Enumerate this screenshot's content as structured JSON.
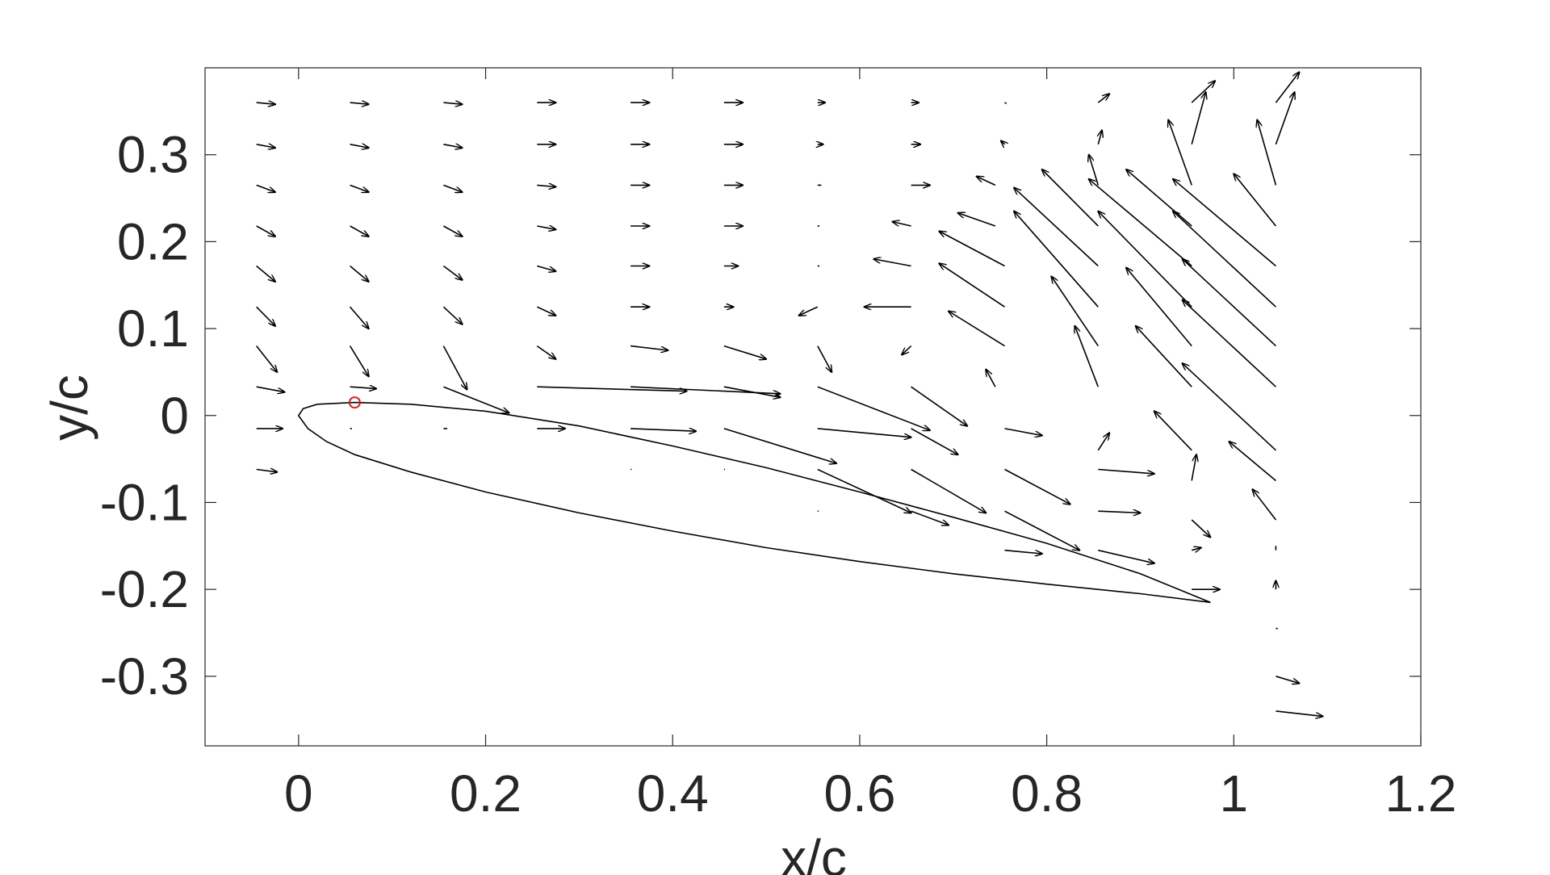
{
  "chart_data": {
    "type": "quiver",
    "title": "",
    "xlabel": "x/c",
    "ylabel": "y/c",
    "xlim": [
      -0.1,
      1.2
    ],
    "ylim": [
      -0.38,
      0.4
    ],
    "xticks": [
      {
        "value": 0,
        "label": "0"
      },
      {
        "value": 0.2,
        "label": "0.2"
      },
      {
        "value": 0.4,
        "label": "0.4"
      },
      {
        "value": 0.6,
        "label": "0.6"
      },
      {
        "value": 0.8,
        "label": "0.8"
      },
      {
        "value": 1,
        "label": "1"
      },
      {
        "value": 1.2,
        "label": "1.2"
      }
    ],
    "yticks": [
      {
        "value": 0.3,
        "label": "0.3"
      },
      {
        "value": 0.2,
        "label": "0.2"
      },
      {
        "value": 0.1,
        "label": "0.1"
      },
      {
        "value": 0,
        "label": "0"
      },
      {
        "value": -0.1,
        "label": "-0.1"
      },
      {
        "value": -0.2,
        "label": "-0.2"
      },
      {
        "value": -0.3,
        "label": "-0.3"
      }
    ],
    "grid": false,
    "colors": {
      "arrow": "#000000",
      "airfoil": "#000000",
      "marker": "#e8141c",
      "axis": "#262626"
    },
    "marker": {
      "x": 0.06,
      "y": 0.015,
      "shape": "circle"
    },
    "airfoil": {
      "leading_edge": [
        0,
        0
      ],
      "trailing_edge": [
        0.975,
        -0.215
      ],
      "upper": [
        [
          0,
          0
        ],
        [
          0.005,
          0.008
        ],
        [
          0.02,
          0.013
        ],
        [
          0.06,
          0.015
        ],
        [
          0.12,
          0.013
        ],
        [
          0.2,
          0.005
        ],
        [
          0.3,
          -0.012
        ],
        [
          0.4,
          -0.035
        ],
        [
          0.5,
          -0.06
        ],
        [
          0.6,
          -0.088
        ],
        [
          0.7,
          -0.117
        ],
        [
          0.8,
          -0.147
        ],
        [
          0.9,
          -0.182
        ],
        [
          0.975,
          -0.215
        ]
      ],
      "lower": [
        [
          0,
          0
        ],
        [
          0.01,
          -0.015
        ],
        [
          0.03,
          -0.03
        ],
        [
          0.06,
          -0.045
        ],
        [
          0.12,
          -0.065
        ],
        [
          0.2,
          -0.088
        ],
        [
          0.3,
          -0.112
        ],
        [
          0.4,
          -0.133
        ],
        [
          0.5,
          -0.152
        ],
        [
          0.6,
          -0.168
        ],
        [
          0.7,
          -0.182
        ],
        [
          0.8,
          -0.194
        ],
        [
          0.9,
          -0.205
        ],
        [
          0.975,
          -0.215
        ]
      ]
    },
    "vectors": [
      [
        -0.045,
        0.36,
        0.02,
        -0.002
      ],
      [
        0.055,
        0.36,
        0.02,
        -0.002
      ],
      [
        0.155,
        0.36,
        0.02,
        -0.002
      ],
      [
        0.255,
        0.36,
        0.02,
        0
      ],
      [
        0.355,
        0.36,
        0.02,
        0
      ],
      [
        0.455,
        0.36,
        0.02,
        0
      ],
      [
        0.555,
        0.36,
        0.008,
        0
      ],
      [
        0.655,
        0.36,
        0.008,
        0
      ],
      [
        0.755,
        0.36,
        0.002,
        -0.001
      ],
      [
        0.855,
        0.36,
        0.012,
        0.01
      ],
      [
        0.955,
        0.36,
        0.025,
        0.025
      ],
      [
        1.045,
        0.36,
        0.025,
        0.035
      ],
      [
        -0.045,
        0.312,
        0.02,
        -0.004
      ],
      [
        0.055,
        0.312,
        0.02,
        -0.004
      ],
      [
        0.155,
        0.312,
        0.02,
        -0.004
      ],
      [
        0.255,
        0.312,
        0.02,
        0
      ],
      [
        0.355,
        0.312,
        0.02,
        0
      ],
      [
        0.455,
        0.312,
        0.02,
        0
      ],
      [
        0.555,
        0.312,
        0.006,
        0
      ],
      [
        0.655,
        0.312,
        0.01,
        0
      ],
      [
        0.755,
        0.312,
        -0.004,
        0.004
      ],
      [
        0.855,
        0.312,
        0.004,
        0.016
      ],
      [
        0.955,
        0.312,
        0.015,
        0.06
      ],
      [
        1.045,
        0.312,
        0.02,
        0.06
      ],
      [
        -0.045,
        0.265,
        0.02,
        -0.008
      ],
      [
        0.055,
        0.265,
        0.02,
        -0.008
      ],
      [
        0.155,
        0.265,
        0.02,
        -0.008
      ],
      [
        0.255,
        0.265,
        0.02,
        -0.002
      ],
      [
        0.355,
        0.265,
        0.02,
        0
      ],
      [
        0.455,
        0.265,
        0.02,
        0
      ],
      [
        0.555,
        0.265,
        0.004,
        0
      ],
      [
        0.655,
        0.265,
        0.02,
        0
      ],
      [
        0.745,
        0.265,
        -0.02,
        0.01
      ],
      [
        0.855,
        0.265,
        -0.01,
        0.035
      ],
      [
        0.955,
        0.265,
        -0.025,
        0.075
      ],
      [
        1.045,
        0.265,
        -0.02,
        0.075
      ],
      [
        -0.045,
        0.218,
        0.02,
        -0.012
      ],
      [
        0.055,
        0.218,
        0.02,
        -0.012
      ],
      [
        0.155,
        0.218,
        0.02,
        -0.012
      ],
      [
        0.255,
        0.218,
        0.02,
        -0.004
      ],
      [
        0.355,
        0.218,
        0.02,
        0
      ],
      [
        0.455,
        0.218,
        0.02,
        0
      ],
      [
        0.555,
        0.218,
        0.002,
        0
      ],
      [
        0.655,
        0.218,
        -0.02,
        0.005
      ],
      [
        0.745,
        0.218,
        -0.04,
        0.015
      ],
      [
        0.855,
        0.218,
        -0.06,
        0.065
      ],
      [
        0.955,
        0.218,
        -0.07,
        0.065
      ],
      [
        1.045,
        0.218,
        -0.045,
        0.06
      ],
      [
        -0.045,
        0.172,
        0.02,
        -0.018
      ],
      [
        0.055,
        0.172,
        0.02,
        -0.018
      ],
      [
        0.155,
        0.172,
        0.02,
        -0.016
      ],
      [
        0.255,
        0.172,
        0.02,
        -0.006
      ],
      [
        0.355,
        0.172,
        0.02,
        0
      ],
      [
        0.455,
        0.172,
        0.015,
        0
      ],
      [
        0.555,
        0.172,
        0.002,
        0
      ],
      [
        0.655,
        0.172,
        -0.04,
        0.008
      ],
      [
        0.755,
        0.172,
        -0.07,
        0.04
      ],
      [
        0.855,
        0.172,
        -0.09,
        0.09
      ],
      [
        0.955,
        0.172,
        -0.11,
        0.1
      ],
      [
        1.045,
        0.172,
        -0.11,
        0.1
      ],
      [
        -0.045,
        0.125,
        0.02,
        -0.022
      ],
      [
        0.055,
        0.125,
        0.02,
        -0.025
      ],
      [
        0.155,
        0.125,
        0.02,
        -0.02
      ],
      [
        0.255,
        0.125,
        0.02,
        -0.01
      ],
      [
        0.355,
        0.125,
        0.02,
        0
      ],
      [
        0.455,
        0.125,
        0.01,
        0
      ],
      [
        0.555,
        0.125,
        -0.02,
        -0.01
      ],
      [
        0.655,
        0.125,
        -0.05,
        0
      ],
      [
        0.755,
        0.125,
        -0.07,
        0.05
      ],
      [
        0.855,
        0.125,
        -0.09,
        0.11
      ],
      [
        0.955,
        0.125,
        -0.1,
        0.11
      ],
      [
        1.045,
        0.125,
        -0.11,
        0.11
      ],
      [
        -0.045,
        0.08,
        0.022,
        -0.03
      ],
      [
        0.055,
        0.08,
        0.02,
        -0.035
      ],
      [
        0.155,
        0.08,
        0.025,
        -0.05
      ],
      [
        0.255,
        0.08,
        0.02,
        -0.015
      ],
      [
        0.355,
        0.08,
        0.04,
        -0.005
      ],
      [
        0.455,
        0.08,
        0.045,
        -0.015
      ],
      [
        0.555,
        0.08,
        0.015,
        -0.03
      ],
      [
        0.655,
        0.08,
        -0.01,
        -0.01
      ],
      [
        0.755,
        0.08,
        -0.06,
        0.04
      ],
      [
        0.855,
        0.08,
        -0.05,
        0.08
      ],
      [
        0.955,
        0.08,
        -0.07,
        0.09
      ],
      [
        1.045,
        0.08,
        -0.1,
        0.1
      ],
      [
        -0.045,
        0.033,
        0.03,
        -0.006
      ],
      [
        0.055,
        0.033,
        0.028,
        -0.002
      ],
      [
        0.155,
        0.033,
        0.07,
        -0.03
      ],
      [
        0.255,
        0.033,
        0.16,
        -0.005
      ],
      [
        0.355,
        0.033,
        0.16,
        -0.008
      ],
      [
        0.455,
        0.033,
        0.06,
        -0.012
      ],
      [
        0.555,
        0.033,
        0.12,
        -0.05
      ],
      [
        0.655,
        0.033,
        0.06,
        -0.045
      ],
      [
        0.745,
        0.033,
        -0.01,
        0.02
      ],
      [
        0.855,
        0.033,
        -0.025,
        0.07
      ],
      [
        0.955,
        0.033,
        -0.06,
        0.07
      ],
      [
        1.045,
        0.033,
        -0.1,
        0.1
      ],
      [
        -0.045,
        -0.015,
        0.028,
        0
      ],
      [
        0.055,
        -0.015,
        0.002,
        0
      ],
      [
        0.155,
        -0.015,
        0.004,
        0
      ],
      [
        0.255,
        -0.015,
        0.03,
        0
      ],
      [
        0.355,
        -0.015,
        0.07,
        -0.003
      ],
      [
        0.455,
        -0.015,
        0.12,
        -0.04
      ],
      [
        0.555,
        -0.015,
        0.1,
        -0.01
      ],
      [
        0.655,
        -0.015,
        0.05,
        -0.03
      ],
      [
        0.755,
        -0.015,
        0.04,
        -0.008
      ],
      [
        0.855,
        -0.04,
        0.012,
        0.02
      ],
      [
        0.955,
        -0.04,
        -0.04,
        0.045
      ],
      [
        1.045,
        -0.04,
        -0.1,
        0.1
      ],
      [
        -0.045,
        -0.062,
        0.022,
        -0.003
      ],
      [
        0.355,
        -0.062,
        0.001,
        0
      ],
      [
        0.455,
        -0.062,
        0.001,
        0
      ],
      [
        0.555,
        -0.062,
        0.1,
        -0.05
      ],
      [
        0.655,
        -0.062,
        0.08,
        -0.05
      ],
      [
        0.755,
        -0.062,
        0.07,
        -0.04
      ],
      [
        0.855,
        -0.062,
        0.06,
        -0.005
      ],
      [
        0.955,
        -0.075,
        0.005,
        0.03
      ],
      [
        1.045,
        -0.075,
        -0.05,
        0.045
      ],
      [
        0.555,
        -0.11,
        0.001,
        0
      ],
      [
        0.655,
        -0.11,
        0.04,
        -0.016
      ],
      [
        0.755,
        -0.11,
        0.08,
        -0.045
      ],
      [
        0.855,
        -0.11,
        0.045,
        -0.002
      ],
      [
        0.955,
        -0.12,
        0.02,
        -0.02
      ],
      [
        1.045,
        -0.12,
        -0.025,
        0.035
      ],
      [
        0.755,
        -0.155,
        0.04,
        -0.004
      ],
      [
        0.855,
        -0.155,
        0.06,
        -0.015
      ],
      [
        0.955,
        -0.155,
        0.01,
        0.003
      ],
      [
        1.045,
        -0.155,
        0,
        0.005
      ],
      [
        0.955,
        -0.2,
        0.03,
        0
      ],
      [
        1.045,
        -0.2,
        0,
        0.01
      ],
      [
        1.045,
        -0.245,
        0.002,
        0
      ],
      [
        1.045,
        -0.3,
        0.025,
        -0.008
      ],
      [
        1.045,
        -0.34,
        0.05,
        -0.006
      ]
    ]
  }
}
